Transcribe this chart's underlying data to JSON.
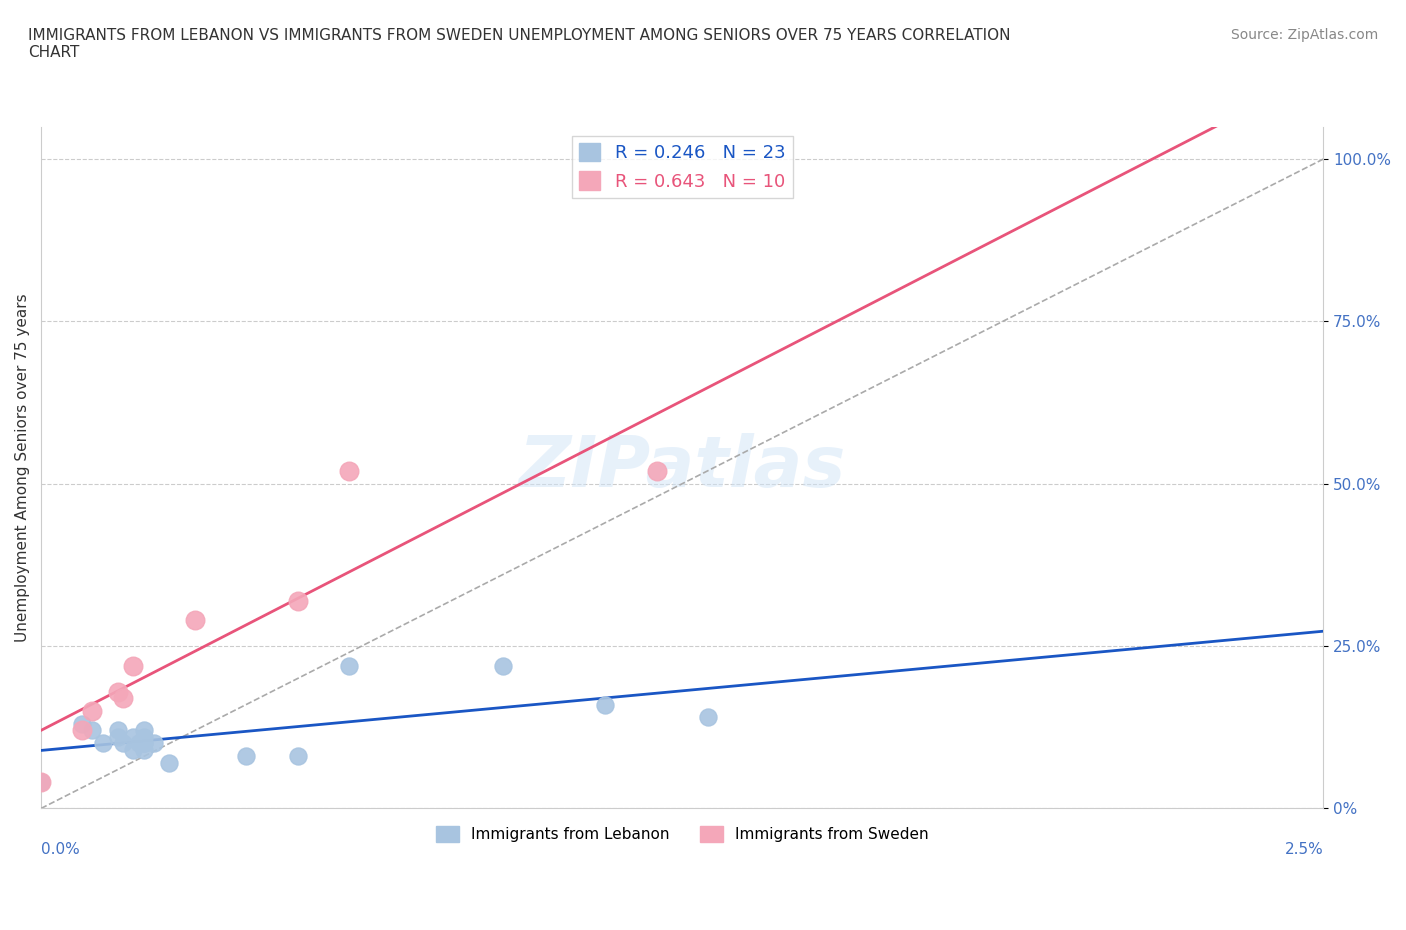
{
  "title": "IMMIGRANTS FROM LEBANON VS IMMIGRANTS FROM SWEDEN UNEMPLOYMENT AMONG SENIORS OVER 75 YEARS CORRELATION\nCHART",
  "source": "Source: ZipAtlas.com",
  "xlabel_bottom_left": "0.0%",
  "xlabel_bottom_right": "2.5%",
  "ylabel": "Unemployment Among Seniors over 75 years",
  "y_ticks": [
    0.0,
    0.25,
    0.5,
    0.75,
    1.0
  ],
  "y_tick_labels": [
    "0%",
    "25.0%",
    "50.0%",
    "75.0%",
    "100.0%"
  ],
  "xlim": [
    0.0,
    0.025
  ],
  "ylim": [
    0.0,
    1.05
  ],
  "lebanon_R": 0.246,
  "lebanon_N": 23,
  "sweden_R": 0.643,
  "sweden_N": 10,
  "lebanon_color": "#a8c4e0",
  "sweden_color": "#f4a7b9",
  "lebanon_line_color": "#1a56c4",
  "sweden_line_color": "#e8547a",
  "trendline_dashed_color": "#aaaaaa",
  "legend_box_color": "#ffffff",
  "background_color": "#ffffff",
  "watermark": "ZIPatlas",
  "lebanon_x": [
    0.0,
    0.0008,
    0.001,
    0.0012,
    0.0015,
    0.0015,
    0.0016,
    0.0018,
    0.0018,
    0.0019,
    0.002,
    0.002,
    0.002,
    0.002,
    0.002,
    0.0022,
    0.0025,
    0.004,
    0.005,
    0.006,
    0.009,
    0.011,
    0.013
  ],
  "lebanon_y": [
    0.04,
    0.13,
    0.12,
    0.1,
    0.12,
    0.11,
    0.1,
    0.09,
    0.11,
    0.1,
    0.1,
    0.09,
    0.11,
    0.12,
    0.1,
    0.1,
    0.07,
    0.08,
    0.08,
    0.22,
    0.22,
    0.16,
    0.14
  ],
  "sweden_x": [
    0.0,
    0.0008,
    0.001,
    0.0015,
    0.0016,
    0.0018,
    0.003,
    0.005,
    0.006,
    0.012
  ],
  "sweden_y": [
    0.04,
    0.12,
    0.15,
    0.18,
    0.17,
    0.22,
    0.29,
    0.32,
    0.52,
    0.52
  ],
  "diagonal_line_x": [
    0.0,
    0.025
  ],
  "diagonal_line_y": [
    0.0,
    1.0
  ]
}
